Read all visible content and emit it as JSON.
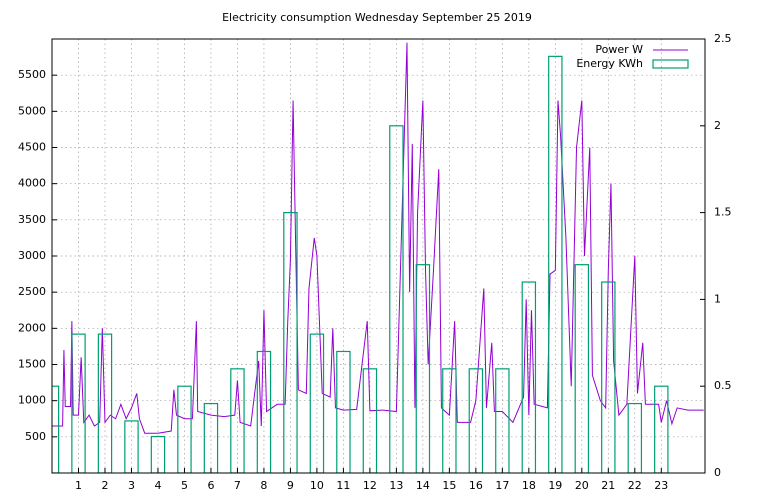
{
  "chart_data": {
    "type": "line",
    "title": "Electricity consumption Wednesday September 25 2019",
    "xlim": [
      0,
      24.65
    ],
    "xticks": [
      1,
      2,
      3,
      4,
      5,
      6,
      7,
      8,
      9,
      10,
      11,
      12,
      13,
      14,
      15,
      16,
      17,
      18,
      19,
      20,
      21,
      22,
      23
    ],
    "ylim": [
      0,
      6000
    ],
    "yticks": [
      500,
      1000,
      1500,
      2000,
      2500,
      3000,
      3500,
      4000,
      4500,
      5000,
      5500
    ],
    "y2lim": [
      0,
      2.5
    ],
    "y2ticks": [
      0,
      0.5,
      1,
      1.5,
      2,
      2.5
    ],
    "grid": true,
    "legend": "top-right",
    "series": [
      {
        "name": "Power W",
        "color": "#9400d3",
        "type": "line",
        "x": [
          0,
          0.4,
          0.45,
          0.5,
          0.7,
          0.75,
          0.8,
          1.0,
          1.1,
          1.2,
          1.4,
          1.6,
          1.8,
          1.9,
          2.0,
          2.2,
          2.4,
          2.6,
          2.8,
          3.0,
          3.2,
          3.3,
          3.5,
          4.0,
          4.5,
          4.6,
          4.7,
          5.0,
          5.3,
          5.45,
          5.5,
          6.0,
          6.5,
          6.9,
          7.0,
          7.1,
          7.5,
          7.8,
          7.9,
          8.0,
          8.1,
          8.5,
          8.8,
          8.9,
          9.0,
          9.1,
          9.2,
          9.3,
          9.6,
          9.7,
          9.9,
          10.0,
          10.2,
          10.5,
          10.6,
          10.7,
          11,
          11.5,
          11.9,
          12,
          12.5,
          13.0,
          13.4,
          13.5,
          13.6,
          13.7,
          13.8,
          14.0,
          14.1,
          14.2,
          14.4,
          14.6,
          14.7,
          15.0,
          15.2,
          15.3,
          15.8,
          16.0,
          16.3,
          16.4,
          16.6,
          16.7,
          17.0,
          17.4,
          17.8,
          17.9,
          18.0,
          18.1,
          18.2,
          18.7,
          18.8,
          19.0,
          19.1,
          19.2,
          19.4,
          19.6,
          19.8,
          20.0,
          20.1,
          20.3,
          20.4,
          20.7,
          20.9,
          21.0,
          21.1,
          21.2,
          21.4,
          21.7,
          22.0,
          22.1,
          22.3,
          22.4,
          22.9,
          23.0,
          23.2,
          23.4,
          23.6,
          24.0,
          24.6
        ],
        "values": [
          650,
          650,
          1700,
          920,
          920,
          2100,
          800,
          800,
          1600,
          700,
          800,
          650,
          700,
          2000,
          700,
          800,
          750,
          950,
          750,
          900,
          1100,
          750,
          550,
          550,
          580,
          1150,
          800,
          750,
          750,
          2100,
          850,
          800,
          780,
          800,
          1280,
          700,
          650,
          1550,
          650,
          2250,
          850,
          950,
          950,
          2100,
          2950,
          5150,
          3100,
          1150,
          1100,
          2550,
          3250,
          3000,
          1100,
          1050,
          2000,
          900,
          870,
          880,
          2100,
          860,
          870,
          850,
          5950,
          2500,
          4550,
          900,
          3600,
          5150,
          2800,
          1500,
          2800,
          4200,
          900,
          800,
          2100,
          700,
          700,
          1000,
          2550,
          900,
          1800,
          850,
          850,
          700,
          1050,
          2400,
          800,
          2250,
          950,
          900,
          2750,
          2800,
          5150,
          4650,
          3250,
          1200,
          4500,
          5150,
          3000,
          4500,
          1350,
          1000,
          900,
          2800,
          4000,
          1550,
          800,
          950,
          3000,
          1100,
          1800,
          950,
          950,
          700,
          1000,
          680,
          900,
          870,
          870
        ]
      },
      {
        "name": "Energy KWh",
        "color": "#009e73",
        "type": "boxes",
        "axis": "y2",
        "x": [
          0,
          1,
          2,
          3,
          4,
          5,
          6,
          7,
          8,
          9,
          10,
          11,
          12,
          13,
          14,
          15,
          16,
          17,
          18,
          19,
          20,
          21,
          22,
          23
        ],
        "values": [
          0.5,
          0.8,
          0.8,
          0.3,
          0.21,
          0.5,
          0.4,
          0.6,
          0.7,
          1.5,
          0.8,
          0.7,
          0.6,
          2.0,
          1.2,
          0.6,
          0.6,
          0.6,
          1.1,
          2.4,
          1.2,
          1.1,
          0.4,
          0.5
        ]
      }
    ]
  }
}
